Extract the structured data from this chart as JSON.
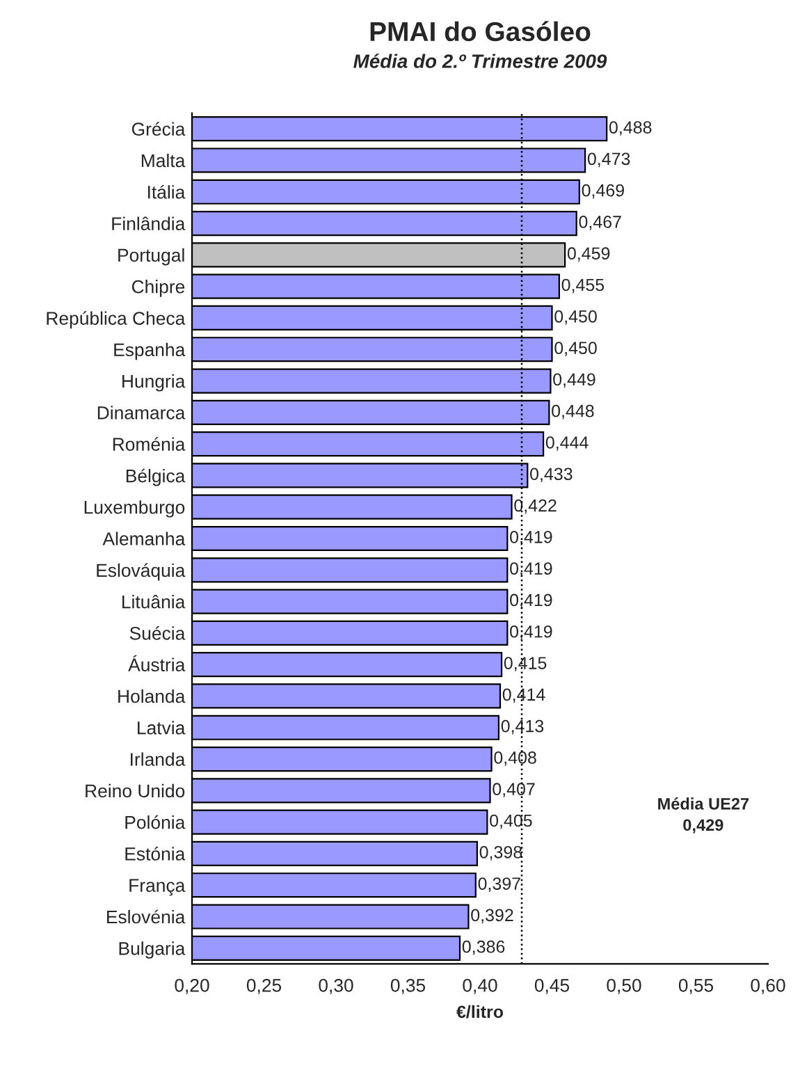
{
  "chart_data": {
    "type": "bar",
    "orientation": "horizontal",
    "title": "PMAI do Gasóleo",
    "subtitle": "Média do 2.º Trimestre 2009",
    "xlabel": "€/litro",
    "categories": [
      "Grécia",
      "Malta",
      "Itália",
      "Finlândia",
      "Portugal",
      "Chipre",
      "República Checa",
      "Espanha",
      "Hungria",
      "Dinamarca",
      "Roménia",
      "Bélgica",
      "Luxemburgo",
      "Alemanha",
      "Eslováquia",
      "Lituânia",
      "Suécia",
      "Áustria",
      "Holanda",
      "Latvia",
      "Irlanda",
      "Reino Unido",
      "Polónia",
      "Estónia",
      "França",
      "Eslovénia",
      "Bulgaria"
    ],
    "values": [
      0.488,
      0.473,
      0.469,
      0.467,
      0.459,
      0.455,
      0.45,
      0.45,
      0.449,
      0.448,
      0.444,
      0.433,
      0.422,
      0.419,
      0.419,
      0.419,
      0.419,
      0.415,
      0.414,
      0.413,
      0.408,
      0.407,
      0.405,
      0.398,
      0.397,
      0.392,
      0.386
    ],
    "value_labels": [
      "0,488",
      "0,473",
      "0,469",
      "0,467",
      "0,459",
      "0,455",
      "0,450",
      "0,450",
      "0,449",
      "0,448",
      "0,444",
      "0,433",
      "0,422",
      "0,419",
      "0,419",
      "0,419",
      "0,419",
      "0,415",
      "0,414",
      "0,413",
      "0,408",
      "0,407",
      "0,405",
      "0,398",
      "0,397",
      "0,392",
      "0,386"
    ],
    "colors": [
      "#9999ff",
      "#9999ff",
      "#9999ff",
      "#9999ff",
      "#c0c0c0",
      "#9999ff",
      "#9999ff",
      "#9999ff",
      "#9999ff",
      "#9999ff",
      "#9999ff",
      "#9999ff",
      "#9999ff",
      "#9999ff",
      "#9999ff",
      "#9999ff",
      "#9999ff",
      "#9999ff",
      "#9999ff",
      "#9999ff",
      "#9999ff",
      "#9999ff",
      "#9999ff",
      "#9999ff",
      "#9999ff",
      "#9999ff",
      "#9999ff"
    ],
    "xlim": [
      0.2,
      0.6
    ],
    "xticks": [
      {
        "value": 0.2,
        "label": "0,20"
      },
      {
        "value": 0.25,
        "label": "0,25"
      },
      {
        "value": 0.3,
        "label": "0,30"
      },
      {
        "value": 0.35,
        "label": "0,35"
      },
      {
        "value": 0.4,
        "label": "0,40"
      },
      {
        "value": 0.45,
        "label": "0,45"
      },
      {
        "value": 0.5,
        "label": "0,50"
      },
      {
        "value": 0.55,
        "label": "0,55"
      },
      {
        "value": 0.6,
        "label": "0,60"
      }
    ],
    "ref_lines": [
      {
        "axis": "x",
        "value": 0.429,
        "label": "Média UE27\n0,429",
        "color": "#000000",
        "line_style": "dotted"
      }
    ],
    "grid": false,
    "legend": false
  }
}
